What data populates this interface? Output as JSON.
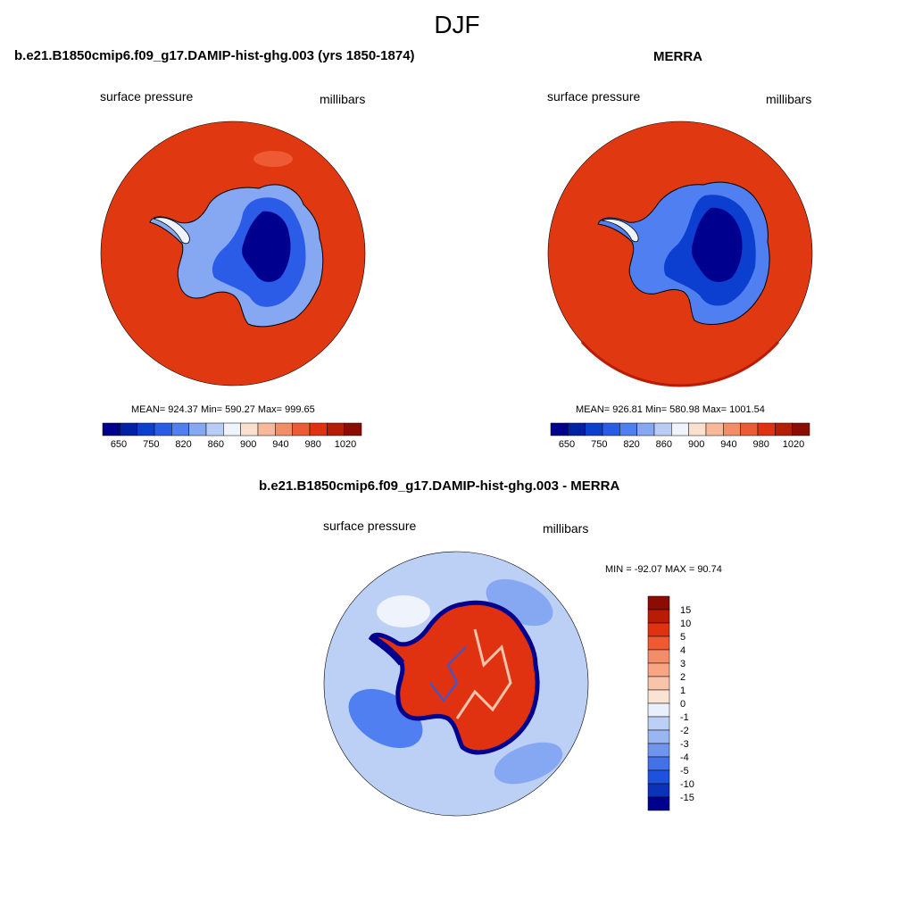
{
  "main_title": "DJF",
  "panels": [
    {
      "title": "b.e21.B1850cmip6.f09_g17.DAMIP-hist-ghg.003 (yrs 1850-1874)",
      "left_label": "surface pressure",
      "right_label": "millibars",
      "stats": "MEAN= 924.37  Min= 590.27  Max= 999.65"
    },
    {
      "title": "MERRA",
      "left_label": "surface pressure",
      "right_label": "millibars",
      "stats": "MEAN= 926.81  Min= 580.98  Max= 1001.54"
    },
    {
      "title": "b.e21.B1850cmip6.f09_g17.DAMIP-hist-ghg.003 - MERRA",
      "left_label": "surface pressure",
      "right_label": "millibars",
      "stats": "MIN = -92.07 MAX =  90.74"
    }
  ],
  "colorbar_abs": {
    "tick_labels": [
      "650",
      "750",
      "820",
      "860",
      "900",
      "940",
      "980",
      "1020"
    ],
    "colors": [
      "#00008f",
      "#0020a8",
      "#0c3fd0",
      "#2a5ce8",
      "#4f7ff0",
      "#86a8f2",
      "#b8ccf6",
      "#eef3fc",
      "#fbe0cf",
      "#f8b99b",
      "#f38d68",
      "#ed5a33",
      "#e03110",
      "#b81c05",
      "#8a0c02"
    ]
  },
  "colorbar_diff": {
    "tick_labels": [
      "15",
      "10",
      "5",
      "4",
      "3",
      "2",
      "1",
      "0",
      "-1",
      "-2",
      "-3",
      "-4",
      "-5",
      "-10",
      "-15"
    ],
    "colors": [
      "#8a0c02",
      "#b81c05",
      "#e03110",
      "#ed5a33",
      "#f38d68",
      "#f8a584",
      "#f8c4aa",
      "#fbe3d4",
      "#e9f0fb",
      "#bcd0f6",
      "#9ab6f2",
      "#6f95ee",
      "#4272e6",
      "#1e52dc",
      "#0a33b8",
      "#00008f"
    ]
  },
  "map_colors": {
    "ocean_abs": "#e03810",
    "ocean_diff": "#bcd0f6",
    "ocean_diff_dark": "#86a8f2",
    "coast": "#000000"
  }
}
